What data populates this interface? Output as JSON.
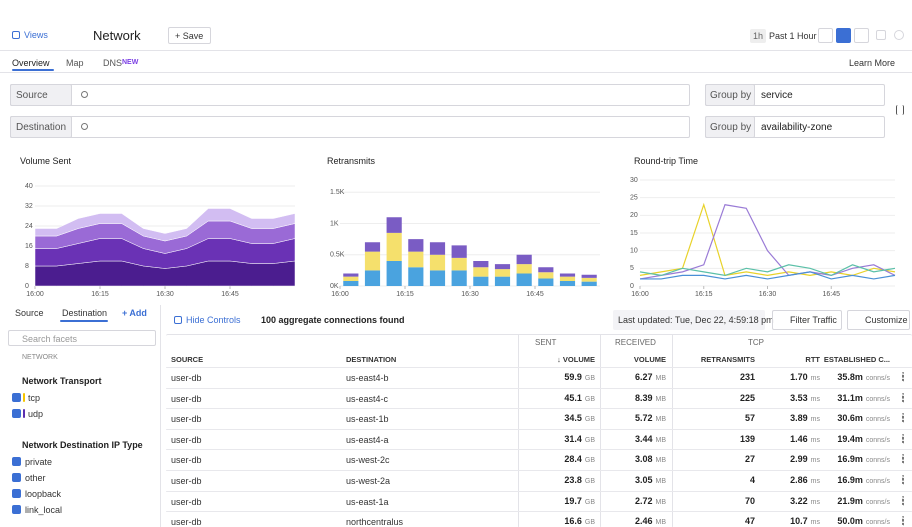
{
  "header": {
    "views": "Views",
    "page": "Network",
    "save": "+ Save",
    "time_badge": "1h",
    "time_range": "Past 1 Hour"
  },
  "tabs": {
    "items": [
      "Overview",
      "Map",
      "DNS"
    ],
    "badge": "NEW",
    "learn_more": "Learn More"
  },
  "filters": [
    {
      "label": "Source",
      "group_label": "Group by",
      "group_value": "service"
    },
    {
      "label": "Destination",
      "group_label": "Group by",
      "group_value": "availability-zone"
    }
  ],
  "charts": [
    {
      "type": "area",
      "title": "Volume Sent",
      "ylim": [
        0,
        40
      ],
      "yticks": [
        0,
        8,
        16,
        24,
        32,
        40
      ],
      "xlim": [
        0,
        60
      ],
      "xticks": [
        {
          "value": 0,
          "label": "16:00"
        },
        {
          "value": 15,
          "label": "16:15"
        },
        {
          "value": 30,
          "label": "16:30"
        },
        {
          "value": 45,
          "label": "16:45"
        }
      ],
      "x": [
        0,
        5,
        10,
        15,
        20,
        25,
        30,
        35,
        40,
        45,
        50,
        55,
        60
      ],
      "series": [
        {
          "color": "#4b1d8f",
          "values": [
            8,
            8,
            9,
            10,
            10,
            8,
            7,
            8,
            10,
            10,
            9,
            9,
            10
          ]
        },
        {
          "color": "#6a32b5",
          "values": [
            7,
            7,
            8,
            9,
            9,
            7,
            6,
            7,
            9,
            9,
            8,
            8,
            9
          ]
        },
        {
          "color": "#9a6ad6",
          "values": [
            5,
            5,
            6,
            6,
            6,
            5,
            5,
            5,
            7,
            7,
            6,
            6,
            6
          ]
        },
        {
          "color": "#d2bdf2",
          "values": [
            3,
            3,
            4,
            4,
            4,
            3,
            3,
            3,
            5,
            5,
            4,
            4,
            4
          ]
        }
      ]
    },
    {
      "type": "bar",
      "title": "Retransmits",
      "ylim": [
        0,
        1600
      ],
      "yticks": [
        {
          "value": 0,
          "label": "0K"
        },
        {
          "value": 500,
          "label": "0.5K"
        },
        {
          "value": 1000,
          "label": "1K"
        },
        {
          "value": 1500,
          "label": "1.5K"
        }
      ],
      "xlim": [
        0,
        60
      ],
      "xticks": [
        {
          "value": 0,
          "label": "16:00"
        },
        {
          "value": 15,
          "label": "16:15"
        },
        {
          "value": 30,
          "label": "16:30"
        },
        {
          "value": 45,
          "label": "16:45"
        }
      ],
      "x": [
        2.5,
        7.5,
        12.5,
        17.5,
        22.5,
        27.5,
        32.5,
        37.5,
        42.5,
        47.5,
        52.5,
        57.5
      ],
      "series": [
        {
          "color": "#4aa3df",
          "values": [
            80,
            250,
            400,
            300,
            250,
            250,
            150,
            150,
            200,
            120,
            80,
            70
          ]
        },
        {
          "color": "#f5e06c",
          "values": [
            70,
            300,
            450,
            250,
            250,
            200,
            150,
            120,
            150,
            100,
            70,
            60
          ]
        },
        {
          "color": "#7a5cc4",
          "values": [
            50,
            150,
            250,
            200,
            200,
            200,
            100,
            80,
            150,
            80,
            50,
            50
          ]
        }
      ]
    },
    {
      "type": "line",
      "title": "Round-trip Time",
      "ylim": [
        0,
        30
      ],
      "yticks": [
        0,
        5,
        10,
        15,
        20,
        25,
        30
      ],
      "xlim": [
        0,
        60
      ],
      "xticks": [
        {
          "value": 0,
          "label": "16:00"
        },
        {
          "value": 15,
          "label": "16:15"
        },
        {
          "value": 30,
          "label": "16:30"
        },
        {
          "value": 45,
          "label": "16:45"
        }
      ],
      "x": [
        0,
        5,
        10,
        15,
        20,
        25,
        30,
        35,
        40,
        45,
        50,
        55,
        60
      ],
      "series": [
        {
          "color": "#e8d22a",
          "values": [
            3,
            4,
            5,
            23,
            3,
            4,
            3,
            4,
            3,
            4,
            3,
            5,
            4
          ]
        },
        {
          "color": "#9a7bd6",
          "values": [
            2,
            3,
            4,
            6,
            23,
            22,
            10,
            3,
            4,
            3,
            5,
            6,
            3
          ]
        },
        {
          "color": "#5bc0a8",
          "values": [
            4,
            3,
            5,
            4,
            3,
            5,
            4,
            6,
            5,
            3,
            6,
            4,
            5
          ]
        },
        {
          "color": "#4a8fd6",
          "values": [
            2,
            2,
            3,
            3,
            2,
            3,
            2,
            3,
            4,
            2,
            3,
            2,
            3
          ]
        }
      ]
    }
  ],
  "facets": {
    "tabs": [
      "Source",
      "Destination",
      "+ Add"
    ],
    "search": "Search facets",
    "section": "NETWORK",
    "groups": [
      {
        "title": "Network Transport",
        "items": [
          "tcp",
          "udp"
        ]
      },
      {
        "title": "Network Destination IP Type",
        "items": [
          "private",
          "other",
          "loopback",
          "link_local"
        ]
      }
    ]
  },
  "toolbar": {
    "hide": "Hide Controls",
    "count": "100 aggregate connections found",
    "updated": "Last updated: Tue, Dec 22, 4:59:18 pm",
    "filter": "Filter Traffic",
    "customize": "Customize"
  },
  "table": {
    "groups": [
      "SENT",
      "RECEIVED",
      "TCP"
    ],
    "columns": [
      "SOURCE",
      "DESTINATION",
      "↓ VOLUME",
      "VOLUME",
      "RETRANSMITS",
      "RTT",
      "ESTABLISHED C..."
    ],
    "rows": [
      [
        "user-db",
        "us-east4-b",
        "59.9",
        "GB",
        "6.27",
        "MB",
        "231",
        "1.70",
        "ms",
        "35.8m",
        "conns/s"
      ],
      [
        "user-db",
        "us-east4-c",
        "45.1",
        "GB",
        "8.39",
        "MB",
        "225",
        "3.53",
        "ms",
        "31.1m",
        "conns/s"
      ],
      [
        "user-db",
        "us-east-1b",
        "34.5",
        "GB",
        "5.72",
        "MB",
        "57",
        "3.89",
        "ms",
        "30.6m",
        "conns/s"
      ],
      [
        "user-db",
        "us-east4-a",
        "31.4",
        "GB",
        "3.44",
        "MB",
        "139",
        "1.46",
        "ms",
        "19.4m",
        "conns/s"
      ],
      [
        "user-db",
        "us-west-2c",
        "28.4",
        "GB",
        "3.08",
        "MB",
        "27",
        "2.99",
        "ms",
        "16.9m",
        "conns/s"
      ],
      [
        "user-db",
        "us-west-2a",
        "23.8",
        "GB",
        "3.05",
        "MB",
        "4",
        "2.86",
        "ms",
        "16.9m",
        "conns/s"
      ],
      [
        "user-db",
        "us-east-1a",
        "19.7",
        "GB",
        "2.72",
        "MB",
        "70",
        "3.22",
        "ms",
        "21.9m",
        "conns/s"
      ],
      [
        "user-db",
        "northcentralus",
        "16.6",
        "GB",
        "2.46",
        "MB",
        "47",
        "10.7",
        "ms",
        "50.0m",
        "conns/s"
      ]
    ]
  }
}
